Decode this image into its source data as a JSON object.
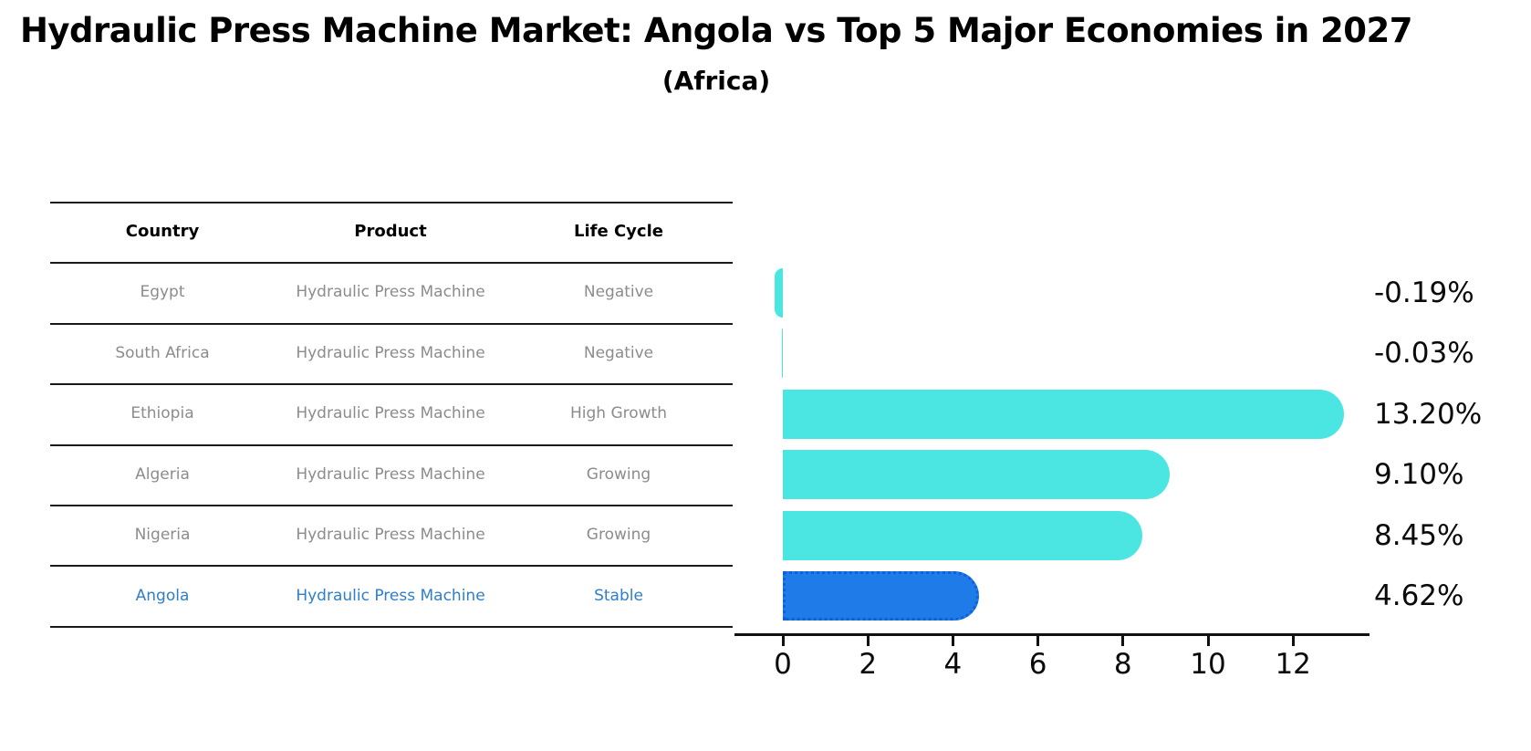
{
  "title": "Hydraulic Press Machine Market: Angola vs Top 5 Major Economies in 2027",
  "subtitle": "(Africa)",
  "table": {
    "headers": [
      "Country",
      "Product",
      "Life Cycle"
    ],
    "rows": [
      {
        "country": "Egypt",
        "product": "Hydraulic Press Machine",
        "life_cycle": "Negative",
        "highlight": false
      },
      {
        "country": "South Africa",
        "product": "Hydraulic Press Machine",
        "life_cycle": "Negative",
        "highlight": false
      },
      {
        "country": "Ethiopia",
        "product": "Hydraulic Press Machine",
        "life_cycle": "High Growth",
        "highlight": false
      },
      {
        "country": "Algeria",
        "product": "Hydraulic Press Machine",
        "life_cycle": "Growing",
        "highlight": false
      },
      {
        "country": "Nigeria",
        "product": "Hydraulic Press Machine",
        "life_cycle": "Growing",
        "highlight": false
      },
      {
        "country": "Angola",
        "product": "Hydraulic Press Machine",
        "life_cycle": "Stable",
        "highlight": true
      }
    ]
  },
  "chart_data": {
    "type": "bar",
    "orientation": "horizontal",
    "title": "Hydraulic Press Machine Market: Angola vs Top 5 Major Economies in 2027 (Africa)",
    "categories": [
      "Egypt",
      "South Africa",
      "Ethiopia",
      "Algeria",
      "Nigeria",
      "Angola"
    ],
    "values": [
      -0.19,
      -0.03,
      13.2,
      9.1,
      8.45,
      4.62
    ],
    "value_labels": [
      "-0.19%",
      "-0.03%",
      "13.20%",
      "9.10%",
      "8.45%",
      "4.62%"
    ],
    "x_ticks": [
      0,
      2,
      4,
      6,
      8,
      10,
      12
    ],
    "xlim": [
      -1.2,
      13.8
    ],
    "grid": false,
    "legend": "none",
    "highlight_index": 5,
    "unit": "%"
  },
  "colors": {
    "bar_color": "#4be6e2",
    "highlight_bar": "#1e7be8",
    "highlight_border": "#1060d8",
    "highlight_text": "#2d7fc9",
    "text_gray": "#8c8c8c"
  }
}
